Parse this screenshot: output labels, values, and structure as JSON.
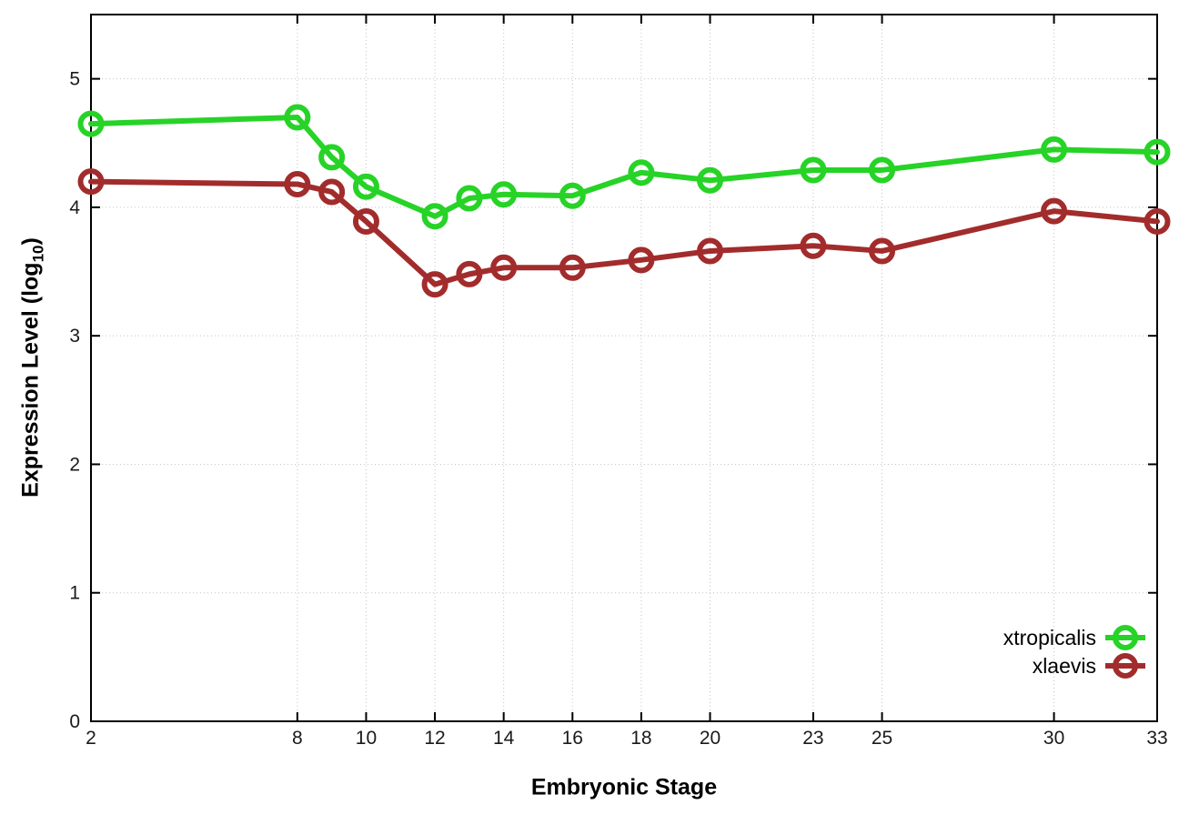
{
  "chart_data": {
    "type": "line",
    "title": "",
    "xlabel": "Embryonic Stage",
    "ylabel": "Expression Level (log10)",
    "ylabel_parts": {
      "prefix": "Expression Level (log",
      "sub": "10",
      "suffix": ")"
    },
    "x": [
      2,
      8,
      9,
      10,
      12,
      13,
      14,
      16,
      18,
      20,
      23,
      25,
      30,
      33
    ],
    "series": [
      {
        "name": "xtropicalis",
        "color": "#26d326",
        "values": [
          4.65,
          4.7,
          4.39,
          4.16,
          3.93,
          4.07,
          4.1,
          4.09,
          4.27,
          4.21,
          4.29,
          4.29,
          4.45,
          4.43
        ]
      },
      {
        "name": "xlaevis",
        "color": "#a22c2c",
        "values": [
          4.2,
          4.18,
          4.12,
          3.89,
          3.4,
          3.48,
          3.53,
          3.53,
          3.59,
          3.66,
          3.7,
          3.66,
          3.97,
          3.89
        ]
      }
    ],
    "x_tick_values": [
      2,
      8,
      10,
      12,
      14,
      16,
      18,
      20,
      23,
      25,
      30,
      33
    ],
    "x_tick_labels": [
      "2",
      "8",
      "10",
      "12",
      "14",
      "16",
      "18",
      "20",
      "23",
      "25",
      "30",
      "33"
    ],
    "y_tick_values": [
      0,
      1,
      2,
      3,
      4,
      5
    ],
    "y_tick_labels": [
      "0",
      "1",
      "2",
      "3",
      "4",
      "5"
    ],
    "xlim": [
      2,
      33
    ],
    "ylim": [
      0,
      5.5
    ],
    "grid": true,
    "legend_position": "inside-bottom-right",
    "axis_color": "#000000",
    "grid_color": "#c4c4c4",
    "tick_label_color": "#1a1a1a"
  }
}
